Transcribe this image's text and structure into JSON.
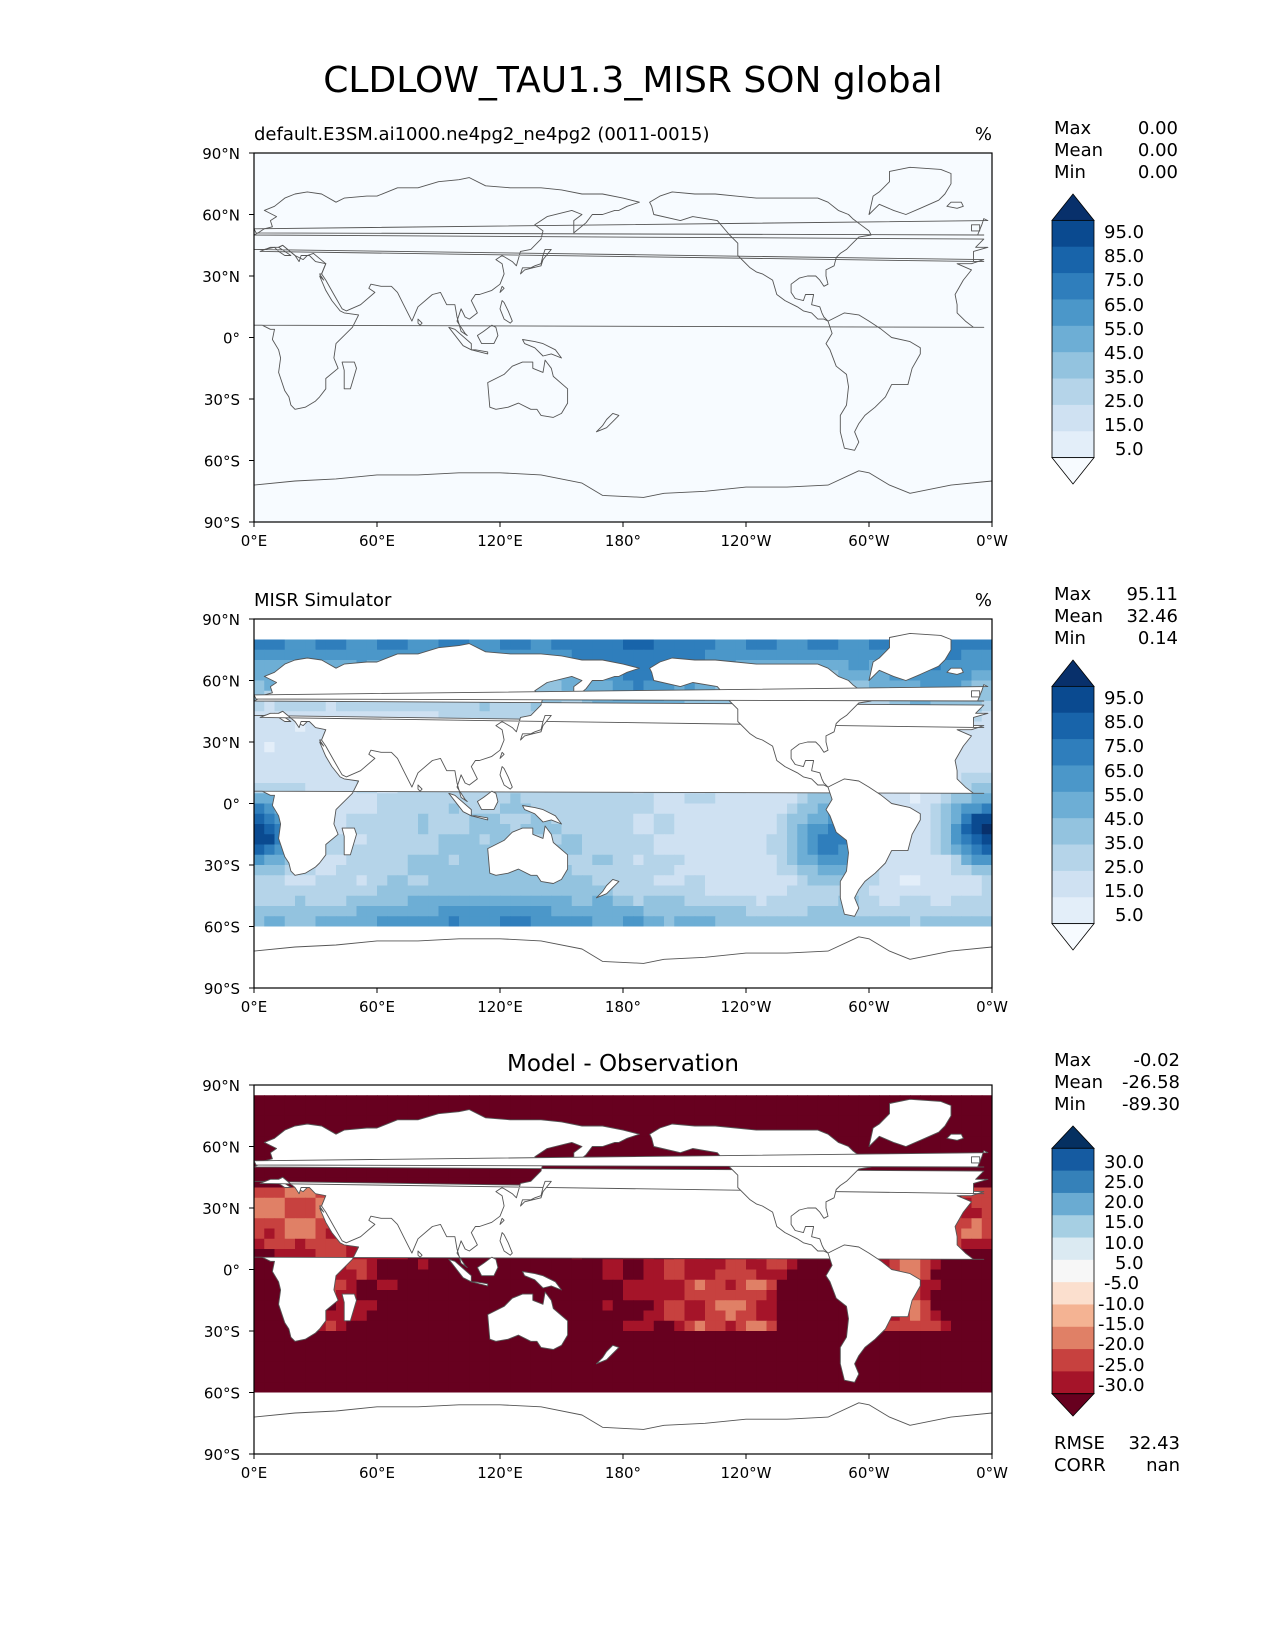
{
  "figure": {
    "title": "CLDLOW_TAU1.3_MISR SON global"
  },
  "axes": {
    "lat_ticks": [
      "90°N",
      "60°N",
      "30°N",
      "0°",
      "30°S",
      "60°S",
      "90°S"
    ],
    "lon_ticks": [
      "0°E",
      "60°E",
      "120°E",
      "180°",
      "120°W",
      "60°W",
      "0°W"
    ]
  },
  "panels": [
    {
      "title_left": "default.E3SM.ai1000.ne4pg2_ne4pg2 (0011-0015)",
      "title_center": "",
      "units": "%",
      "stats": {
        "max_label": "Max",
        "max": "0.00",
        "mean_label": "Mean",
        "mean": "0.00",
        "min_label": "Min",
        "min": "0.00"
      },
      "colorbar_labels": [
        "95.0",
        "85.0",
        "75.0",
        "65.0",
        "55.0",
        "45.0",
        "35.0",
        "25.0",
        "15.0",
        "5.0"
      ]
    },
    {
      "title_left": "MISR Simulator",
      "title_center": "",
      "units": "%",
      "stats": {
        "max_label": "Max",
        "max": "95.11",
        "mean_label": "Mean",
        "mean": "32.46",
        "min_label": "Min",
        "min": "0.14"
      },
      "colorbar_labels": [
        "95.0",
        "85.0",
        "75.0",
        "65.0",
        "55.0",
        "45.0",
        "35.0",
        "25.0",
        "15.0",
        "5.0"
      ]
    },
    {
      "title_left": "",
      "title_center": "Model - Observation",
      "units": "",
      "stats": {
        "max_label": "Max",
        "max": "-0.02",
        "mean_label": "Mean",
        "mean": "-26.58",
        "min_label": "Min",
        "min": "-89.30"
      },
      "colorbar_labels": [
        "30.0",
        "25.0",
        "20.0",
        "15.0",
        "10.0",
        "5.0",
        "-5.0",
        "-10.0",
        "-15.0",
        "-20.0",
        "-25.0",
        "-30.0"
      ],
      "metrics": {
        "rmse_label": "RMSE",
        "rmse": "32.43",
        "corr_label": "CORR",
        "corr": "nan"
      }
    }
  ],
  "colors": {
    "blues": [
      "#f7fbff",
      "#e3eef9",
      "#cfe1f2",
      "#b5d4e9",
      "#93c3df",
      "#6daed5",
      "#4b97c9",
      "#2f7ebc",
      "#1864aa",
      "#0a4a90",
      "#08306b"
    ],
    "rdbu": [
      "#67001f",
      "#a51429",
      "#c7413f",
      "#e08066",
      "#f4b393",
      "#fbdfce",
      "#f7f7f7",
      "#dbeaf2",
      "#a6cfe3",
      "#6aabd2",
      "#3581b9",
      "#155ba1",
      "#053061"
    ],
    "coast": "#555555"
  },
  "chart_data": [
    {
      "type": "heatmap",
      "title": "default.E3SM.ai1000.ne4pg2_ne4pg2 (0011-0015)",
      "units": "%",
      "x_range": [
        0,
        360
      ],
      "y_range": [
        -90,
        90
      ],
      "levels": [
        0,
        5,
        15,
        25,
        35,
        45,
        55,
        65,
        75,
        85,
        95,
        100
      ],
      "field": "uniform",
      "stats": {
        "max": 0.0,
        "mean": 0.0,
        "min": 0.0
      }
    },
    {
      "type": "heatmap",
      "title": "MISR Simulator",
      "units": "%",
      "x_range": [
        0,
        360
      ],
      "y_range": [
        -90,
        90
      ],
      "valid_lat": [
        -60,
        82
      ],
      "levels": [
        0,
        5,
        15,
        25,
        35,
        45,
        55,
        65,
        75,
        85,
        95,
        100
      ],
      "field": "low_cloud",
      "background_value": 15,
      "hotspots": [
        {
          "lon": 282,
          "lat": -18,
          "value": 85,
          "spread": 15
        },
        {
          "lon": 5,
          "lat": -15,
          "value": 75,
          "spread": 12
        },
        {
          "lon": 352,
          "lat": -12,
          "value": 72,
          "spread": 12
        },
        {
          "lon": 232,
          "lat": 25,
          "value": 60,
          "spread": 12
        },
        {
          "lon": 190,
          "lat": 50,
          "value": 45,
          "spread": 22
        },
        {
          "lon": 330,
          "lat": 55,
          "value": 42,
          "spread": 18
        },
        {
          "lon": 120,
          "lat": -50,
          "value": 48,
          "spread": 60
        }
      ],
      "stats": {
        "max": 95.11,
        "mean": 32.46,
        "min": 0.14
      }
    },
    {
      "type": "heatmap",
      "title": "Model - Observation",
      "x_range": [
        0,
        360
      ],
      "y_range": [
        -90,
        90
      ],
      "valid_lat": [
        -60,
        85
      ],
      "levels": [
        -100,
        -30,
        -25,
        -20,
        -15,
        -10,
        -5,
        5,
        10,
        15,
        20,
        25,
        30,
        100
      ],
      "field": "difference",
      "stats": {
        "max": -0.02,
        "mean": -26.58,
        "min": -89.3
      },
      "metrics": {
        "rmse": 32.43,
        "corr": "nan"
      }
    }
  ]
}
